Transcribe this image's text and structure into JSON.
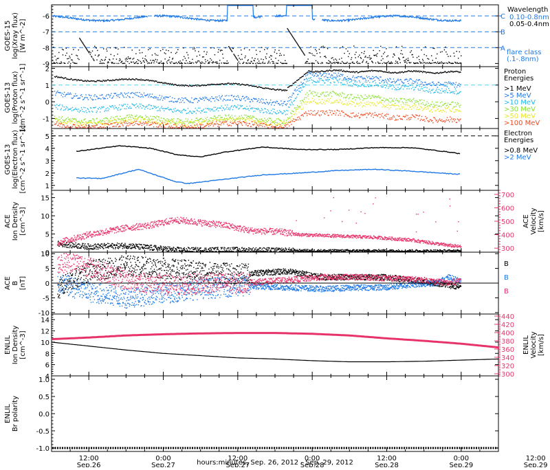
{
  "colors": {
    "black": "#000000",
    "blue": "#1e78e6",
    "pink": "#e8336a",
    "cyan_light": "#4fd8f0",
    "cyan": "#22b8e8",
    "green": "#88e030",
    "yellow": "#e8e830",
    "orange": "#f0a020",
    "red": "#f04820"
  },
  "x_axis": {
    "tick_times": [
      "12:00",
      "0:00",
      "12:00",
      "0:00",
      "12:00",
      "0:00",
      "12:00"
    ],
    "tick_dates": [
      "Sep.26",
      "Sep.27",
      "Sep.27",
      "Sep.28",
      "Sep.28",
      "Sep.29",
      "Sep.29"
    ],
    "caption": "hours:minutes, Sep. 26, 2012 - Sep. 29, 2012",
    "range_hours": [
      6,
      78
    ]
  },
  "chart_data": [
    {
      "id": "goes15",
      "type": "line",
      "ylabel_lines": [
        "GOES-15",
        "log(Xray flux)",
        "[W m^-2]"
      ],
      "ylim": [
        -9.2,
        -5.3
      ],
      "yticks": [
        "-9",
        "-8",
        "-7",
        "-6"
      ],
      "ytick_values": [
        -9,
        -8,
        -7,
        -6
      ],
      "right_tick_labels": [
        "C",
        "B",
        "A"
      ],
      "reference_levels": [
        -6,
        -7,
        -8
      ],
      "legend_title": "Wavelength",
      "legend": [
        {
          "label": "0.10-0.8nm",
          "color": "blue"
        },
        {
          "label": "0.05-0.4nm",
          "color": "black"
        }
      ],
      "flare_note_lines": [
        "flare class",
        "(.1-.8nm)"
      ],
      "series": [
        {
          "name": "0.10-0.8nm",
          "color": "blue",
          "kind": "xray_long",
          "baseline": -6.15,
          "flares": [
            [
              34.5,
              -5.3
            ],
            [
              44.0,
              -5.35
            ]
          ]
        },
        {
          "name": "0.05-0.4nm",
          "color": "black",
          "kind": "xray_short",
          "baseline": -9.0,
          "flares": [
            [
              10.5,
              -7.4
            ],
            [
              34.5,
              -7.9
            ],
            [
              44.0,
              -6.8
            ]
          ]
        }
      ]
    },
    {
      "id": "goes13p",
      "type": "scatter",
      "ylabel_lines": [
        "GOES-13",
        "log(Proton flux)",
        "[cm^-2 s^-1 sr^-1]"
      ],
      "ylim": [
        -1.6,
        2.1
      ],
      "yticks": [
        "-1",
        "0",
        "1",
        "2"
      ],
      "ytick_values": [
        -1,
        0,
        1,
        2
      ],
      "reference_levels": [
        1.0
      ],
      "legend_title_lines": [
        "Proton",
        "Energies"
      ],
      "legend": [
        {
          "label": ">1 MeV",
          "color": "black"
        },
        {
          "label": ">5 MeV",
          "color": "blue"
        },
        {
          "label": ">10 MeV",
          "color": "cyan"
        },
        {
          "label": ">30 MeV",
          "color": "green"
        },
        {
          "label": ">50 MeV",
          "color": "yellow"
        },
        {
          "label": ">100 MeV",
          "color": "red"
        }
      ],
      "series": [
        {
          "name": ">1 MeV",
          "color": "black",
          "start": 1.45,
          "pre_end": 0.8,
          "peak": 1.85,
          "end": 1.75
        },
        {
          "name": ">5 MeV",
          "color": "blue",
          "start": 0.45,
          "pre_end": 0.0,
          "peak": 1.65,
          "end": 0.95
        },
        {
          "name": ">10 MeV",
          "color": "cyan",
          "start": -0.35,
          "pre_end": -0.5,
          "peak": 1.35,
          "end": 0.55
        },
        {
          "name": ">30 MeV",
          "color": "green",
          "start": -1.05,
          "pre_end": -1.05,
          "peak": 0.55,
          "end": -0.25
        },
        {
          "name": ">50 MeV",
          "color": "yellow",
          "start": -1.2,
          "pre_end": -1.2,
          "peak": 0.1,
          "end": -0.55
        },
        {
          "name": ">100 MeV",
          "color": "red",
          "start": -1.4,
          "pre_end": -1.4,
          "peak": -0.6,
          "end": -1.15
        }
      ]
    },
    {
      "id": "goes13e",
      "type": "line",
      "ylabel_lines": [
        "GOES-13",
        "log(Electron flux)",
        "[cm^-2 s^-1 sr^-1]"
      ],
      "ylim": [
        0.6,
        5.6
      ],
      "yticks": [
        "1",
        "2",
        "3",
        "4",
        "5"
      ],
      "ytick_values": [
        1,
        2,
        3,
        4,
        5
      ],
      "reference_levels": [
        5.0
      ],
      "legend_title_lines": [
        "Electron",
        "Energies"
      ],
      "legend": [
        {
          "label": ">0.8 MeV",
          "color": "black"
        },
        {
          "label": ">2 MeV",
          "color": "blue"
        }
      ],
      "series": [
        {
          "name": ">0.8 MeV",
          "color": "black",
          "points": [
            [
              10,
              3.75
            ],
            [
              17,
              4.2
            ],
            [
              22,
              4.0
            ],
            [
              26,
              3.5
            ],
            [
              30,
              3.3
            ],
            [
              34,
              3.7
            ],
            [
              40,
              4.1
            ],
            [
              46,
              3.9
            ],
            [
              52,
              3.9
            ],
            [
              58,
              4.05
            ],
            [
              64,
              4.05
            ],
            [
              70,
              3.7
            ],
            [
              72,
              3.55
            ]
          ]
        },
        {
          "name": ">2 MeV",
          "color": "blue",
          "points": [
            [
              10,
              1.6
            ],
            [
              14,
              1.55
            ],
            [
              20,
              2.3
            ],
            [
              26,
              1.3
            ],
            [
              28,
              1.15
            ],
            [
              34,
              1.5
            ],
            [
              40,
              1.85
            ],
            [
              46,
              2.0
            ],
            [
              52,
              2.2
            ],
            [
              58,
              2.3
            ],
            [
              64,
              2.15
            ],
            [
              70,
              1.95
            ],
            [
              72,
              1.9
            ]
          ]
        }
      ]
    },
    {
      "id": "ace_plasma",
      "type": "scatter",
      "ylabel_lines": [
        "ACE",
        "Ion Density",
        "[cm^-3]"
      ],
      "right_label_lines": [
        "ACE",
        "Velocity",
        "[km/s]"
      ],
      "ylim": [
        0,
        17
      ],
      "yticks": [
        "0",
        "5",
        "10",
        "15"
      ],
      "ytick_values": [
        0,
        5,
        10,
        15
      ],
      "right_ylim": [
        270,
        730
      ],
      "right_yticks": [
        "300",
        "400",
        "500",
        "600",
        "700"
      ],
      "right_ytick_values": [
        300,
        400,
        500,
        600,
        700
      ],
      "series": [
        {
          "name": "density",
          "color": "black",
          "axis": "left",
          "points": [
            [
              7,
              2.3
            ],
            [
              12,
              1.5
            ],
            [
              18,
              1.8
            ],
            [
              22,
              1.2
            ],
            [
              26,
              0.6
            ],
            [
              30,
              0.5
            ],
            [
              34,
              0.6
            ],
            [
              40,
              0.5
            ],
            [
              44,
              0.4
            ],
            [
              50,
              0.35
            ],
            [
              58,
              0.35
            ],
            [
              66,
              0.3
            ],
            [
              72,
              0.3
            ]
          ]
        },
        {
          "name": "velocity",
          "color": "pink",
          "axis": "right",
          "points": [
            [
              7,
              340
            ],
            [
              12,
              400
            ],
            [
              18,
              450
            ],
            [
              22,
              470
            ],
            [
              26,
              510
            ],
            [
              30,
              490
            ],
            [
              34,
              470
            ],
            [
              38,
              430
            ],
            [
              43,
              420
            ],
            [
              46,
              400
            ],
            [
              52,
              390
            ],
            [
              58,
              380
            ],
            [
              64,
              360
            ],
            [
              70,
              320
            ],
            [
              72,
              310
            ]
          ]
        }
      ]
    },
    {
      "id": "ace_mag",
      "type": "scatter",
      "ylabel_lines": [
        "ACE",
        "B",
        "[nT]"
      ],
      "ylim": [
        -10.5,
        10.5
      ],
      "yticks": [
        "-10",
        "-5",
        "0",
        "5",
        "10"
      ],
      "ytick_values": [
        -10,
        -5,
        0,
        5,
        10
      ],
      "legend": [
        {
          "label": "Bx",
          "color": "black"
        },
        {
          "label": "By",
          "color": "blue"
        },
        {
          "label": "Bz",
          "color": "pink"
        }
      ],
      "series": [
        {
          "name": "Bx",
          "color": "black",
          "points": [
            [
              7,
              -2
            ],
            [
              12,
              4
            ],
            [
              18,
              6
            ],
            [
              24,
              5
            ],
            [
              30,
              4
            ],
            [
              36,
              3
            ],
            [
              40,
              3.5
            ],
            [
              44,
              4
            ],
            [
              50,
              2
            ],
            [
              56,
              2
            ],
            [
              60,
              2
            ],
            [
              64,
              1
            ],
            [
              68,
              0
            ],
            [
              72,
              -1.5
            ]
          ]
        },
        {
          "name": "By",
          "color": "blue",
          "points": [
            [
              7,
              0
            ],
            [
              12,
              -3
            ],
            [
              18,
              -5
            ],
            [
              22,
              -4
            ],
            [
              26,
              -3
            ],
            [
              30,
              -2
            ],
            [
              36,
              -1
            ],
            [
              44,
              -1.5
            ],
            [
              50,
              -2
            ],
            [
              56,
              -1.5
            ],
            [
              60,
              -1.5
            ],
            [
              64,
              -0.5
            ],
            [
              68,
              0
            ],
            [
              70,
              2
            ],
            [
              72,
              0.5
            ]
          ]
        },
        {
          "name": "Bz",
          "color": "pink",
          "points": [
            [
              7,
              7
            ],
            [
              10,
              7
            ],
            [
              14,
              4
            ],
            [
              18,
              1
            ],
            [
              22,
              0
            ],
            [
              26,
              -1
            ],
            [
              30,
              0
            ],
            [
              36,
              0
            ],
            [
              44,
              1
            ],
            [
              50,
              2
            ],
            [
              56,
              2
            ],
            [
              62,
              1.5
            ],
            [
              66,
              1
            ],
            [
              70,
              0
            ],
            [
              72,
              1
            ]
          ]
        }
      ]
    },
    {
      "id": "enlil_plasma",
      "type": "line",
      "ylabel_lines": [
        "ENLIL",
        "Ion Density",
        "[cm^-3]"
      ],
      "right_label_lines": [
        "ENLIL",
        "Velocity",
        "[km/s]"
      ],
      "ylim": [
        4,
        15
      ],
      "yticks": [
        "4",
        "6",
        "8",
        "10",
        "12",
        "14"
      ],
      "ytick_values": [
        4,
        6,
        8,
        10,
        12,
        14
      ],
      "right_ylim": [
        295,
        445
      ],
      "right_yticks": [
        "300",
        "320",
        "340",
        "360",
        "380",
        "400",
        "420",
        "440"
      ],
      "right_ytick_values": [
        300,
        320,
        340,
        360,
        380,
        400,
        420,
        440
      ],
      "series": [
        {
          "name": "density",
          "color": "black",
          "axis": "left",
          "points": [
            [
              6,
              10.0
            ],
            [
              12,
              9.3
            ],
            [
              18,
              8.6
            ],
            [
              24,
              8.0
            ],
            [
              30,
              7.6
            ],
            [
              36,
              7.2
            ],
            [
              42,
              7.0
            ],
            [
              48,
              6.7
            ],
            [
              54,
              6.5
            ],
            [
              60,
              6.5
            ],
            [
              66,
              6.6
            ],
            [
              72,
              6.8
            ],
            [
              78,
              7.0
            ]
          ]
        },
        {
          "name": "velocity",
          "color": "pink",
          "axis": "right",
          "points": [
            [
              6,
              384
            ],
            [
              12,
              388
            ],
            [
              18,
              393
            ],
            [
              24,
              396
            ],
            [
              30,
              398
            ],
            [
              36,
              399
            ],
            [
              42,
              399
            ],
            [
              48,
              397
            ],
            [
              54,
              393
            ],
            [
              60,
              386
            ],
            [
              66,
              380
            ],
            [
              72,
              373
            ],
            [
              78,
              364
            ]
          ]
        }
      ]
    },
    {
      "id": "enlil_polarity",
      "type": "line",
      "ylabel_lines": [
        "ENLIL",
        "Br polarity"
      ],
      "ylim": [
        -1.1,
        1.1
      ],
      "yticks": [
        "-1.0",
        "-0.5",
        "0.0",
        "0.5",
        "1.0"
      ],
      "ytick_values": [
        -1.0,
        -0.5,
        0.0,
        0.5,
        1.0
      ],
      "series": [
        {
          "name": "polarity",
          "color": "black",
          "points": [
            [
              6,
              -1
            ],
            [
              78,
              -1
            ]
          ]
        }
      ]
    }
  ]
}
